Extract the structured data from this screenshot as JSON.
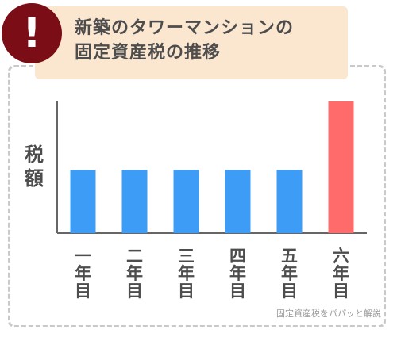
{
  "title": {
    "line1": "新築のタワーマンションの",
    "line2": "固定資産税の推移"
  },
  "alert_icon": "exclamation-icon",
  "alert_symbol": "!",
  "watermark": "固定資産税をパパッと解説",
  "colors": {
    "title_bg": "#fbe6cf",
    "alert": "#7a0d16",
    "bar_normal": "#3d9cf5",
    "bar_highlight": "#ff6b6b",
    "axis": "#666666"
  },
  "chart_data": {
    "type": "bar",
    "ylabel": "税額",
    "categories": [
      "一年目",
      "二年目",
      "三年目",
      "四年目",
      "五年目",
      "六年目"
    ],
    "values": [
      48,
      48,
      48,
      48,
      48,
      100
    ],
    "highlight_index": 5,
    "ylim": [
      0,
      100
    ],
    "grid": false,
    "legend": "none"
  }
}
